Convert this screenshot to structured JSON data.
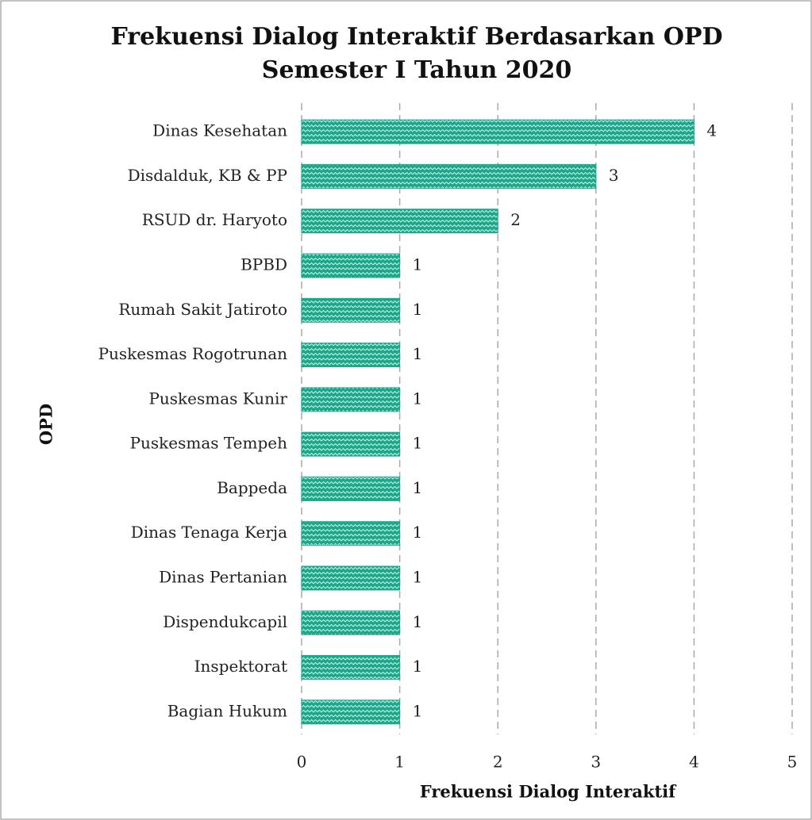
{
  "chart_data": {
    "type": "barh",
    "title": [
      "Frekuensi Dialog Interaktif Berdasarkan OPD",
      "Semester I Tahun 2020"
    ],
    "x_label": "Frekuensi Dialog Interaktif",
    "y_label": "OPD",
    "categories": [
      "Dinas Kesehatan",
      "Disdalduk, KB & PP",
      "RSUD dr. Haryoto",
      "BPBD",
      "Rumah Sakit Jatiroto",
      "Puskesmas Rogotrunan",
      "Puskesmas Kunir",
      "Puskesmas Tempeh",
      "Bappeda",
      "Dinas Tenaga Kerja",
      "Dinas Pertanian",
      "Dispendukcapil",
      "Inspektorat",
      "Bagian Hukum"
    ],
    "values": [
      4,
      3,
      2,
      1,
      1,
      1,
      1,
      1,
      1,
      1,
      1,
      1,
      1,
      1
    ],
    "color": "#1aa88a",
    "xlim": [
      0,
      5
    ],
    "xticks": [
      0,
      1,
      2,
      3,
      4,
      5
    ],
    "grid": true
  }
}
